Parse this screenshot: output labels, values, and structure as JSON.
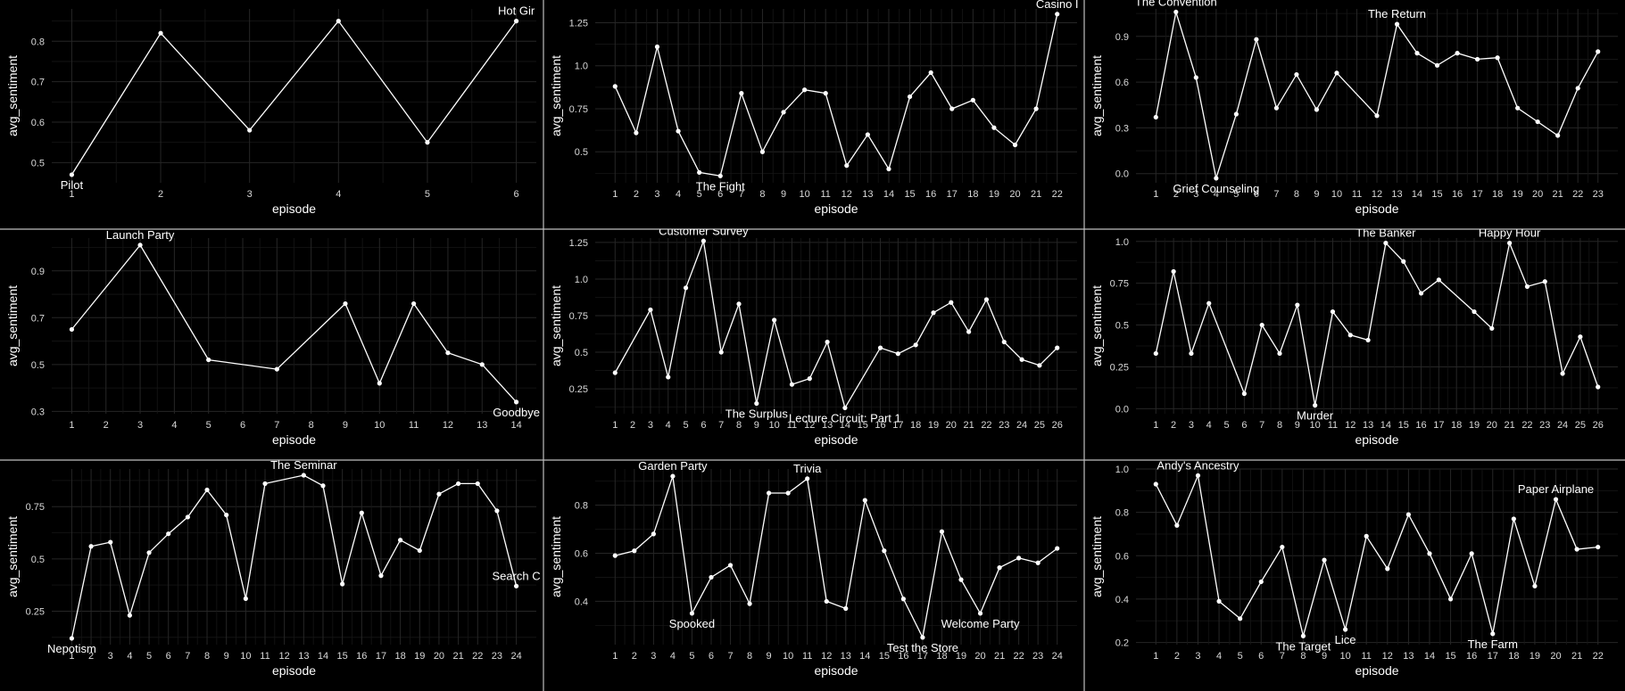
{
  "chart_data": [
    {
      "type": "line",
      "xlabel": "episode",
      "ylabel": "avg_sentiment",
      "x": [
        1,
        2,
        3,
        4,
        5,
        6
      ],
      "values": [
        0.47,
        0.82,
        0.58,
        0.85,
        0.55,
        0.85
      ],
      "ylim": [
        0.45,
        0.88
      ],
      "yticks": [
        0.5,
        0.6,
        0.7,
        0.8
      ],
      "annotations": [
        {
          "x": 1,
          "y": 0.47,
          "text": "Pilot",
          "pos": "below"
        },
        {
          "x": 6,
          "y": 0.85,
          "text": "Hot Gir",
          "pos": "above"
        }
      ]
    },
    {
      "type": "line",
      "xlabel": "episode",
      "ylabel": "avg_sentiment",
      "x": [
        1,
        2,
        3,
        4,
        5,
        6,
        7,
        8,
        9,
        10,
        11,
        12,
        13,
        14,
        15,
        16,
        17,
        18,
        19,
        20,
        21,
        22
      ],
      "values": [
        0.88,
        0.61,
        1.11,
        0.62,
        0.38,
        0.36,
        0.84,
        0.5,
        0.73,
        0.86,
        0.84,
        0.42,
        0.6,
        0.4,
        0.82,
        0.96,
        0.75,
        0.8,
        0.64,
        0.54,
        0.75,
        1.3
      ],
      "ylim": [
        0.32,
        1.33
      ],
      "yticks": [
        0.5,
        0.75,
        1.0,
        1.25
      ],
      "annotations": [
        {
          "x": 6,
          "y": 0.36,
          "text": "The Fight",
          "pos": "below"
        },
        {
          "x": 22,
          "y": 1.3,
          "text": "Casino I",
          "pos": "above"
        }
      ]
    },
    {
      "type": "line",
      "xlabel": "episode",
      "ylabel": "avg_sentiment",
      "x": [
        1,
        2,
        3,
        4,
        5,
        6,
        7,
        8,
        9,
        10,
        12,
        13,
        14,
        15,
        16,
        17,
        18,
        19,
        20,
        21,
        22,
        23
      ],
      "values": [
        0.37,
        1.06,
        0.63,
        -0.03,
        0.39,
        0.88,
        0.43,
        0.65,
        0.42,
        0.66,
        0.38,
        0.98,
        0.79,
        0.71,
        0.79,
        0.75,
        0.76,
        0.43,
        0.34,
        0.25,
        0.56,
        0.8
      ],
      "ylim": [
        -0.06,
        1.08
      ],
      "yticks": [
        0.0,
        0.3,
        0.6,
        0.9
      ],
      "annotations": [
        {
          "x": 2,
          "y": 1.06,
          "text": "The Convention",
          "pos": "above"
        },
        {
          "x": 13,
          "y": 0.98,
          "text": "The Return",
          "pos": "above"
        },
        {
          "x": 4,
          "y": -0.03,
          "text": "Grief Counseling",
          "pos": "below"
        }
      ]
    },
    {
      "type": "line",
      "xlabel": "episode",
      "ylabel": "avg_sentiment",
      "x": [
        1,
        3,
        5,
        7,
        9,
        10,
        11,
        12,
        13,
        14
      ],
      "values": [
        0.65,
        1.01,
        0.52,
        0.48,
        0.76,
        0.42,
        0.76,
        0.55,
        0.5,
        0.34
      ],
      "ylim": [
        0.29,
        1.04
      ],
      "yticks": [
        0.3,
        0.5,
        0.7,
        0.9
      ],
      "annotations": [
        {
          "x": 3,
          "y": 1.01,
          "text": "Launch Party",
          "pos": "above"
        },
        {
          "x": 14,
          "y": 0.34,
          "text": "Goodbye",
          "pos": "below"
        }
      ]
    },
    {
      "type": "line",
      "xlabel": "episode",
      "ylabel": "avg_sentiment",
      "x": [
        1,
        3,
        4,
        5,
        6,
        7,
        8,
        9,
        10,
        11,
        12,
        13,
        14,
        16,
        17,
        18,
        19,
        20,
        21,
        22,
        23,
        24,
        25,
        26
      ],
      "values": [
        0.36,
        0.79,
        0.33,
        0.94,
        1.26,
        0.5,
        0.83,
        0.15,
        0.72,
        0.28,
        0.32,
        0.57,
        0.12,
        0.53,
        0.49,
        0.55,
        0.77,
        0.84,
        0.64,
        0.86,
        0.57,
        0.45,
        0.41,
        0.53
      ],
      "ylim": [
        0.08,
        1.28
      ],
      "yticks": [
        0.25,
        0.5,
        0.75,
        1.0,
        1.25
      ],
      "annotations": [
        {
          "x": 6,
          "y": 1.26,
          "text": "Customer Survey",
          "pos": "above"
        },
        {
          "x": 9,
          "y": 0.15,
          "text": "The Surplus",
          "pos": "below"
        },
        {
          "x": 14,
          "y": 0.12,
          "text": "Lecture Circuit: Part 1",
          "pos": "below"
        }
      ]
    },
    {
      "type": "line",
      "xlabel": "episode",
      "ylabel": "avg_sentiment",
      "x": [
        1,
        2,
        3,
        4,
        6,
        7,
        8,
        9,
        10,
        11,
        12,
        13,
        14,
        15,
        16,
        17,
        19,
        20,
        21,
        22,
        23,
        24,
        25,
        26
      ],
      "values": [
        0.33,
        0.82,
        0.33,
        0.63,
        0.09,
        0.5,
        0.33,
        0.62,
        0.02,
        0.58,
        0.44,
        0.41,
        0.99,
        0.88,
        0.69,
        0.77,
        0.58,
        0.48,
        0.99,
        0.73,
        0.76,
        0.21,
        0.43,
        0.13
      ],
      "ylim": [
        -0.03,
        1.02
      ],
      "yticks": [
        0.0,
        0.25,
        0.5,
        0.75,
        1.0
      ],
      "annotations": [
        {
          "x": 14,
          "y": 0.99,
          "text": "The Banker",
          "pos": "above"
        },
        {
          "x": 21,
          "y": 0.99,
          "text": "Happy Hour",
          "pos": "above"
        },
        {
          "x": 10,
          "y": 0.02,
          "text": "Murder",
          "pos": "below"
        }
      ]
    },
    {
      "type": "line",
      "xlabel": "episode",
      "ylabel": "avg_sentiment",
      "x": [
        1,
        2,
        3,
        4,
        5,
        6,
        7,
        8,
        9,
        10,
        11,
        13,
        14,
        15,
        16,
        17,
        18,
        19,
        20,
        21,
        22,
        23,
        24
      ],
      "values": [
        0.12,
        0.56,
        0.58,
        0.23,
        0.53,
        0.62,
        0.7,
        0.83,
        0.71,
        0.31,
        0.86,
        0.9,
        0.85,
        0.38,
        0.72,
        0.42,
        0.59,
        0.54,
        0.81,
        0.86,
        0.86,
        0.73,
        0.37
      ],
      "ylim": [
        0.09,
        0.93
      ],
      "yticks": [
        0.25,
        0.5,
        0.75
      ],
      "annotations": [
        {
          "x": 13,
          "y": 0.9,
          "text": "The Seminar",
          "pos": "above"
        },
        {
          "x": 1,
          "y": 0.12,
          "text": "Nepotism",
          "pos": "below"
        },
        {
          "x": 24,
          "y": 0.37,
          "text": "Search C",
          "pos": "above"
        }
      ]
    },
    {
      "type": "line",
      "xlabel": "episode",
      "ylabel": "avg_sentiment",
      "x": [
        1,
        2,
        3,
        4,
        5,
        6,
        7,
        8,
        9,
        10,
        11,
        12,
        13,
        14,
        15,
        16,
        17,
        18,
        19,
        20,
        21,
        22,
        23,
        24
      ],
      "values": [
        0.59,
        0.61,
        0.68,
        0.92,
        0.35,
        0.5,
        0.55,
        0.39,
        0.85,
        0.85,
        0.91,
        0.4,
        0.37,
        0.82,
        0.61,
        0.41,
        0.25,
        0.69,
        0.49,
        0.35,
        0.54,
        0.58,
        0.56,
        0.62
      ],
      "ylim": [
        0.22,
        0.95
      ],
      "yticks": [
        0.4,
        0.6,
        0.8
      ],
      "annotations": [
        {
          "x": 4,
          "y": 0.92,
          "text": "Garden Party",
          "pos": "above"
        },
        {
          "x": 11,
          "y": 0.91,
          "text": "Trivia",
          "pos": "above"
        },
        {
          "x": 5,
          "y": 0.35,
          "text": "Spooked",
          "pos": "below"
        },
        {
          "x": 17,
          "y": 0.25,
          "text": "Test the Store",
          "pos": "below"
        },
        {
          "x": 20,
          "y": 0.35,
          "text": "Welcome Party",
          "pos": "below"
        }
      ]
    },
    {
      "type": "line",
      "xlabel": "episode",
      "ylabel": "avg_sentiment",
      "x": [
        1,
        2,
        3,
        4,
        5,
        6,
        7,
        8,
        9,
        10,
        11,
        12,
        13,
        14,
        15,
        16,
        17,
        18,
        19,
        20,
        21,
        22
      ],
      "values": [
        0.93,
        0.74,
        0.97,
        0.39,
        0.31,
        0.48,
        0.64,
        0.23,
        0.58,
        0.26,
        0.69,
        0.54,
        0.79,
        0.61,
        0.4,
        0.61,
        0.24,
        0.77,
        0.46,
        0.86,
        0.63,
        0.64
      ],
      "ylim": [
        0.19,
        1.0
      ],
      "yticks": [
        0.2,
        0.4,
        0.6,
        0.8,
        1.0
      ],
      "annotations": [
        {
          "x": 3,
          "y": 0.97,
          "text": "Andy's Ancestry",
          "pos": "above"
        },
        {
          "x": 20,
          "y": 0.86,
          "text": "Paper Airplane",
          "pos": "above"
        },
        {
          "x": 8,
          "y": 0.23,
          "text": "The Target",
          "pos": "below"
        },
        {
          "x": 10,
          "y": 0.26,
          "text": "Lice",
          "pos": "below"
        },
        {
          "x": 17,
          "y": 0.24,
          "text": "The Farm",
          "pos": "below"
        }
      ]
    }
  ]
}
